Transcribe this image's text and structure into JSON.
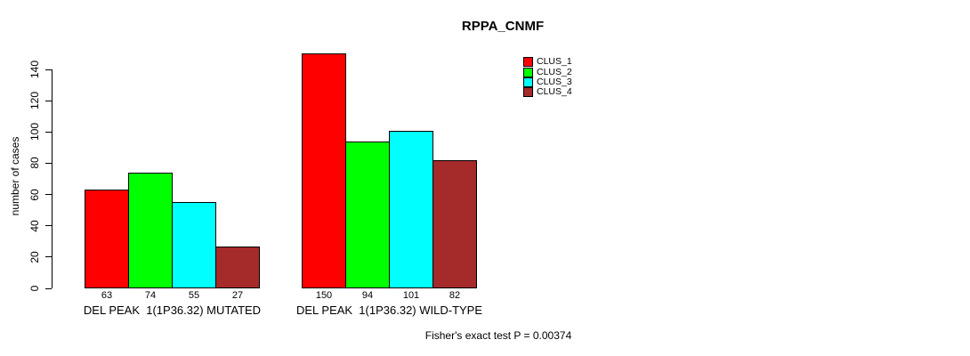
{
  "chart_data": {
    "type": "bar",
    "title": "RPPA_CNMF",
    "ylabel": "number of cases",
    "xlabel": "",
    "ylim": [
      0,
      150
    ],
    "yticks": [
      0,
      20,
      40,
      60,
      80,
      100,
      120,
      140
    ],
    "grid": false,
    "legend_position": "top-right",
    "value_labels_shown": true,
    "series": [
      {
        "name": "CLUS_1",
        "color": "#FF0000"
      },
      {
        "name": "CLUS_2",
        "color": "#00FF00"
      },
      {
        "name": "CLUS_3",
        "color": "#00FFFF"
      },
      {
        "name": "CLUS_4",
        "color": "#A52A2A"
      }
    ],
    "groups": [
      {
        "label": "DEL PEAK  1(1P36.32) MUTATED",
        "values": [
          63,
          74,
          55,
          27
        ]
      },
      {
        "label": "DEL PEAK  1(1P36.32) WILD-TYPE",
        "values": [
          150,
          94,
          101,
          82
        ]
      }
    ],
    "annotation": "Fisher's exact test P = 0.00374"
  }
}
